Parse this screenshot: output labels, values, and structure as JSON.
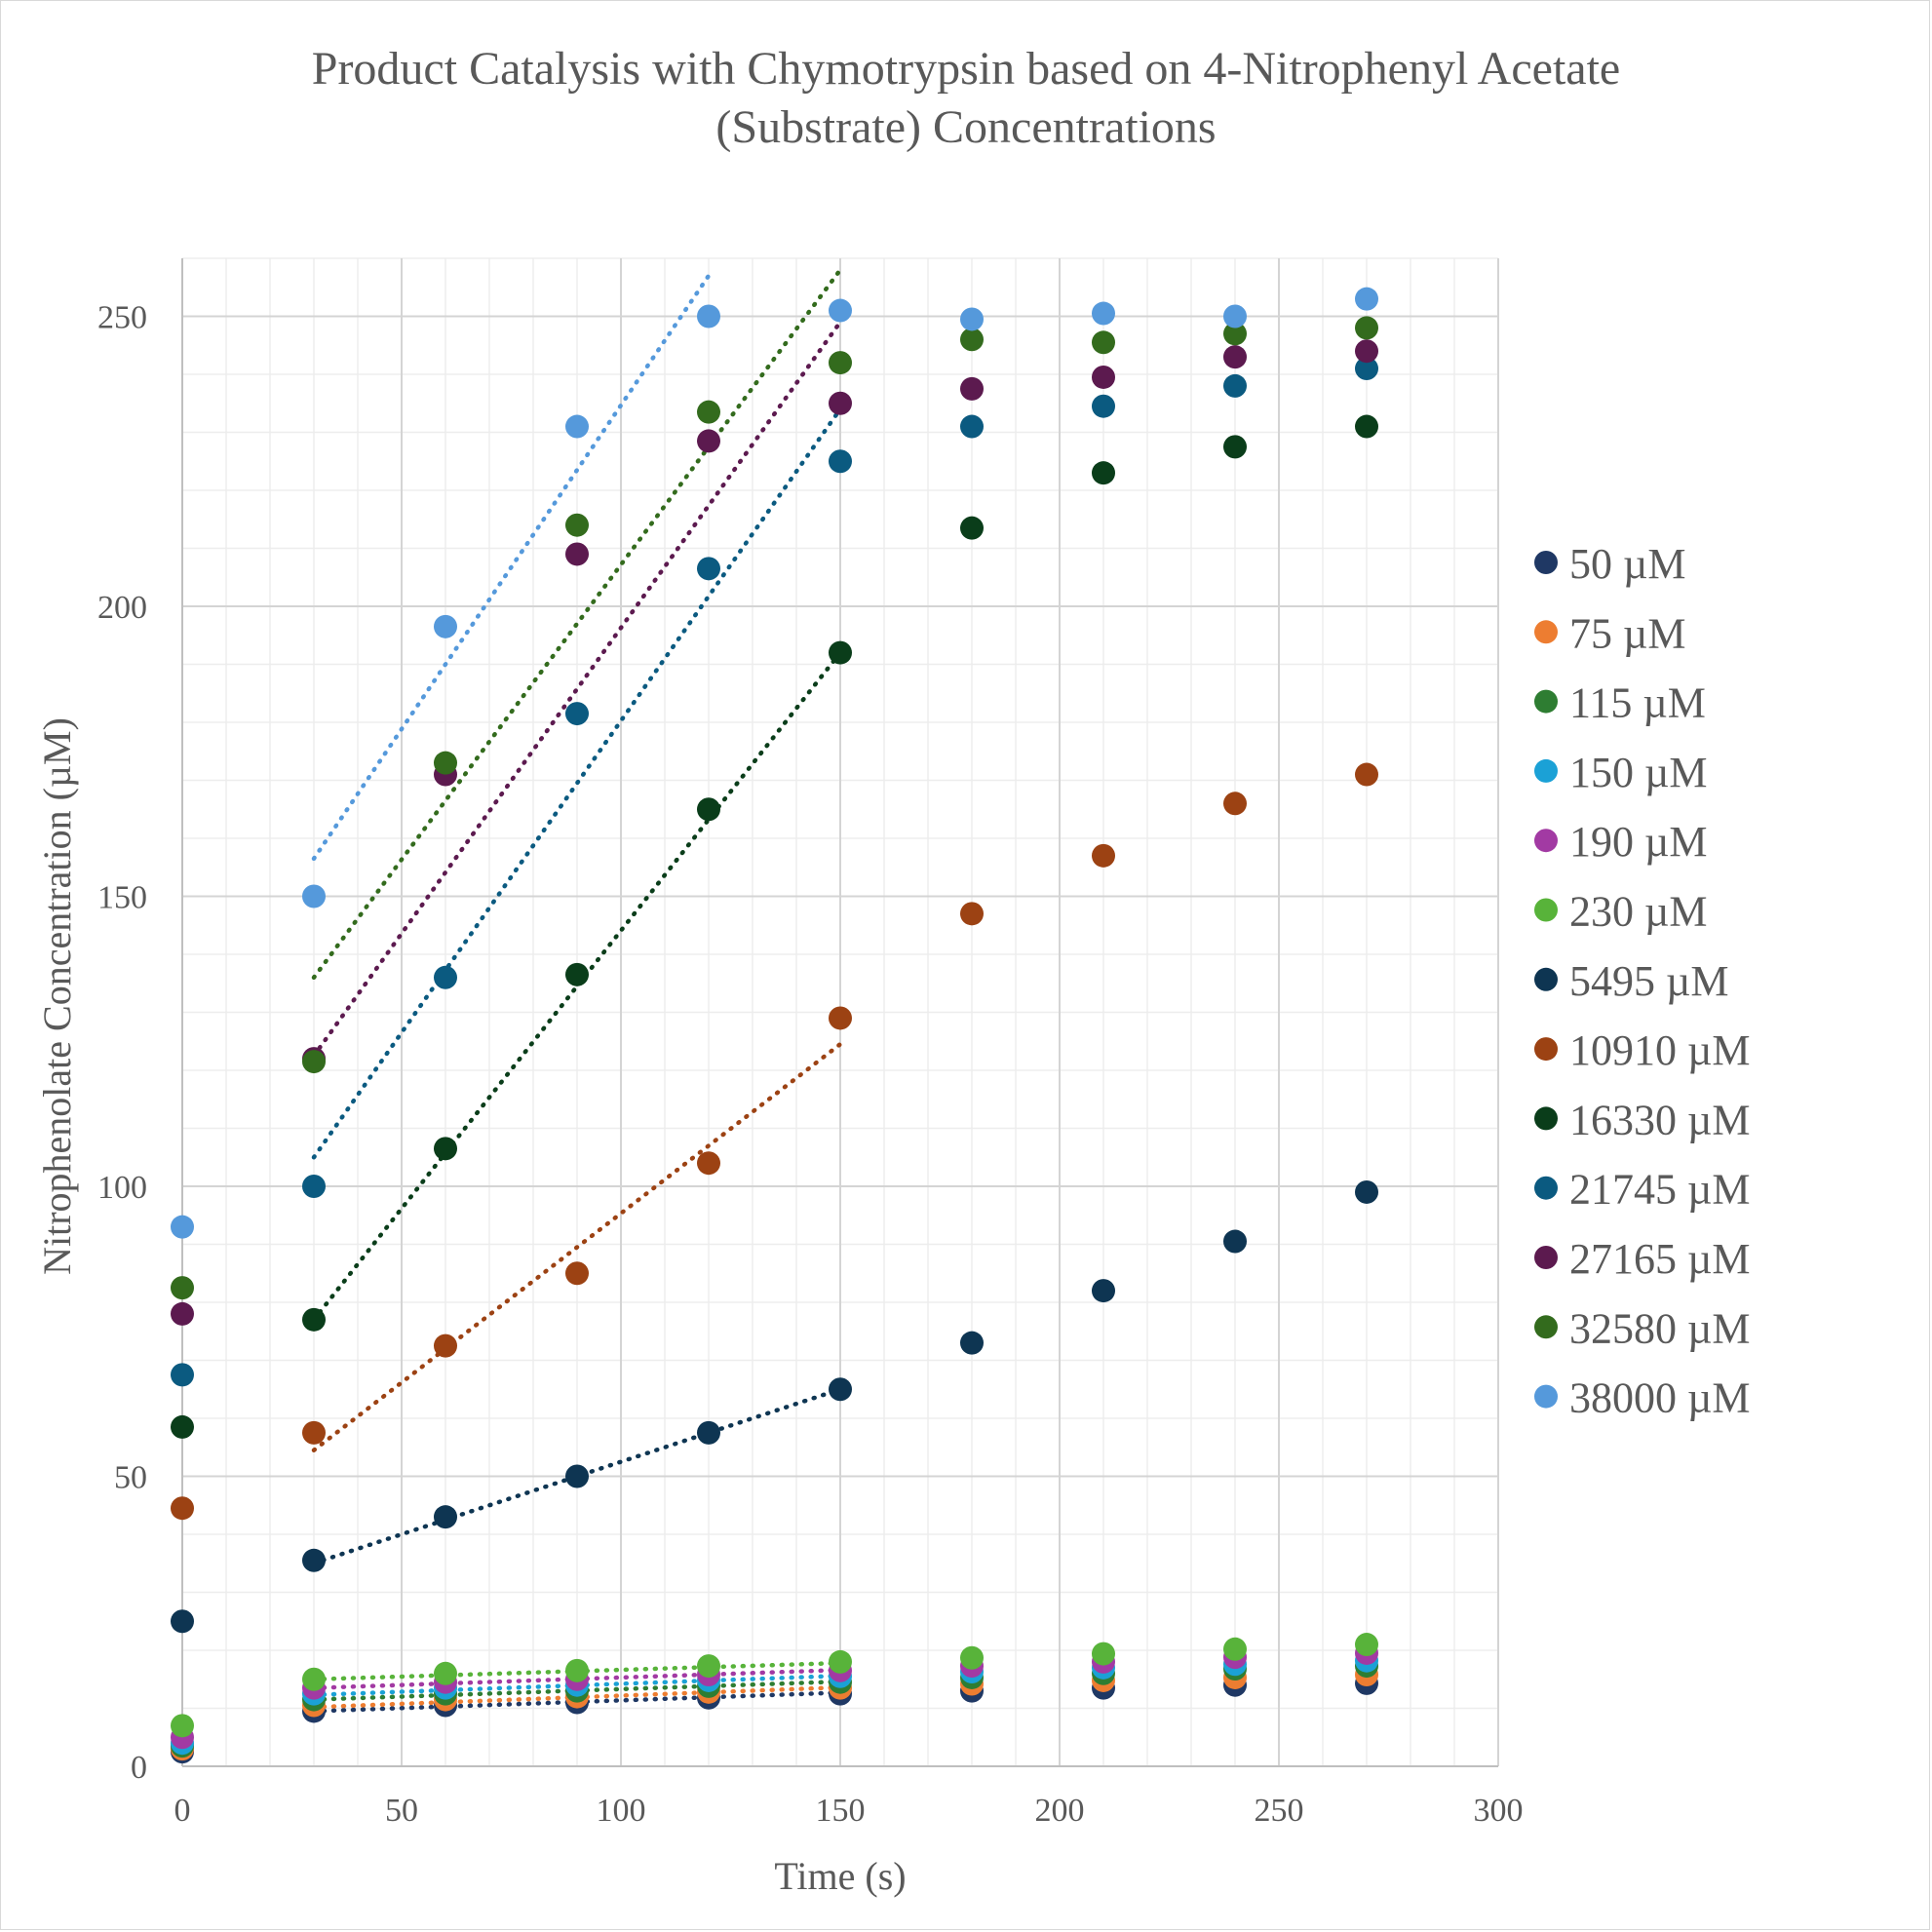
{
  "chart_data": {
    "type": "scatter",
    "title_lines": [
      "Product Catalysis with Chymotrypsin based on 4-Nitrophenyl Acetate",
      "(Substrate) Concentrations"
    ],
    "xlabel": "Time (s)",
    "ylabel": "Nitrophenolate Concentration (µM)",
    "xlim": [
      0,
      300
    ],
    "ylim": [
      0,
      260
    ],
    "x_ticks": [
      "0",
      "50",
      "100",
      "150",
      "200",
      "250",
      "300"
    ],
    "y_ticks": [
      "0",
      "50",
      "100",
      "150",
      "200",
      "250"
    ],
    "grid": true,
    "legend_position": "right",
    "x": [
      0,
      30,
      60,
      90,
      120,
      150,
      180,
      210,
      240,
      270
    ],
    "series": [
      {
        "name": "50 µM",
        "color": "#1f3864",
        "values": [
          2.5,
          9.5,
          10.5,
          11.0,
          11.8,
          12.5,
          13.0,
          13.5,
          14.0,
          14.3
        ],
        "trend": [
          9.5,
          12.7
        ]
      },
      {
        "name": "75 µM",
        "color": "#ed7d31",
        "values": [
          3.0,
          10.5,
          11.5,
          12.0,
          12.8,
          13.5,
          14.2,
          14.8,
          15.3,
          15.8
        ],
        "trend": [
          10.2,
          13.6
        ]
      },
      {
        "name": "115 µM",
        "color": "#2e7d32",
        "values": [
          3.5,
          11.5,
          12.5,
          13.0,
          13.8,
          14.5,
          15.3,
          16.0,
          16.8,
          17.3
        ],
        "trend": [
          11.5,
          14.6
        ]
      },
      {
        "name": "150 µM",
        "color": "#1ba1d6",
        "values": [
          4.0,
          12.5,
          13.5,
          14.0,
          14.8,
          15.5,
          16.3,
          17.0,
          17.6,
          18.2
        ],
        "trend": [
          12.3,
          15.6
        ]
      },
      {
        "name": "190 µM",
        "color": "#a23aa3",
        "values": [
          5.0,
          13.5,
          14.5,
          15.0,
          15.8,
          16.5,
          17.3,
          18.0,
          18.8,
          19.5
        ],
        "trend": [
          13.5,
          16.6
        ]
      },
      {
        "name": "230 µM",
        "color": "#58b33a",
        "values": [
          7.0,
          15.0,
          16.0,
          16.5,
          17.3,
          18.0,
          18.7,
          19.4,
          20.2,
          21.0
        ],
        "trend": [
          15.0,
          17.8
        ]
      },
      {
        "name": "5495 µM",
        "color": "#0e3552",
        "values": [
          25.0,
          35.5,
          43.0,
          50.0,
          57.5,
          65.0,
          73.0,
          82.0,
          90.5,
          99.0
        ],
        "trend": [
          35.0,
          65.0
        ]
      },
      {
        "name": "10910 µM",
        "color": "#9c4213",
        "values": [
          44.5,
          57.5,
          72.5,
          85.0,
          104.0,
          129.0,
          147.0,
          157.0,
          166.0,
          171.0
        ],
        "trend": [
          54.5,
          124.5
        ]
      },
      {
        "name": "16330 µM",
        "color": "#0a3d1a",
        "values": [
          58.5,
          77.0,
          106.5,
          136.5,
          165.0,
          192.0,
          213.5,
          223.0,
          227.5,
          231.0
        ],
        "trend": [
          77.0,
          192.0
        ]
      },
      {
        "name": "21745 µM",
        "color": "#0b5a80",
        "values": [
          67.5,
          100.0,
          136.0,
          181.5,
          206.5,
          225.0,
          231.0,
          234.5,
          238.0,
          241.0
        ],
        "trend": [
          105.0,
          234.0
        ]
      },
      {
        "name": "27165 µM",
        "color": "#5c1a4f",
        "values": [
          78.0,
          122.0,
          171.0,
          209.0,
          228.5,
          235.0,
          237.5,
          239.5,
          243.0,
          244.0
        ],
        "trend": [
          122.5,
          249.0
        ]
      },
      {
        "name": "32580 µM",
        "color": "#336b1d",
        "values": [
          82.5,
          121.5,
          173.0,
          214.0,
          233.5,
          242.0,
          246.0,
          245.5,
          247.0,
          248.0
        ],
        "trend": [
          136.0,
          258.0
        ]
      },
      {
        "name": "38000 µM",
        "color": "#5599db",
        "values": [
          93.0,
          150.0,
          196.5,
          231.0,
          250.0,
          251.0,
          249.5,
          250.5,
          250.0,
          253.0
        ],
        "trend_x": [
          30,
          120
        ],
        "trend": [
          156.5,
          257.0
        ]
      }
    ]
  }
}
